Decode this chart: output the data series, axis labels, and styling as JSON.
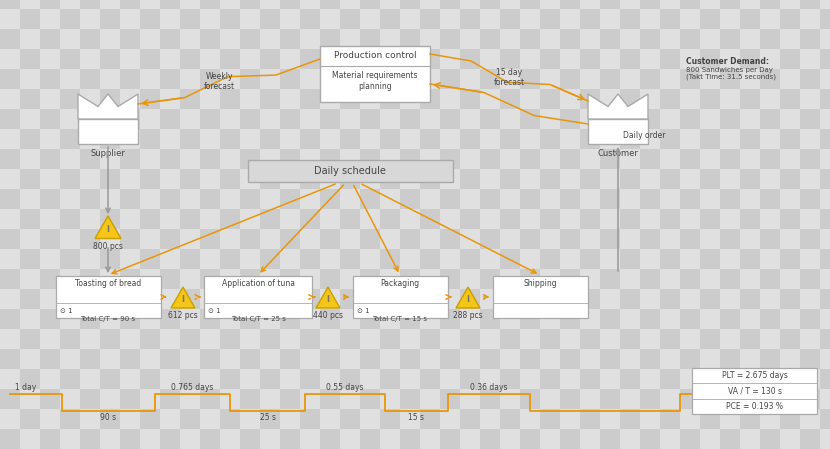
{
  "bg_checker_color1": "#cccccc",
  "bg_checker_color2": "#e0e0e0",
  "orange": "#e8960a",
  "gray_box": "#aaaaaa",
  "tri_fill": "#f5c518",
  "tri_stroke": "#c8a000",
  "text_color": "#444444",
  "title_top": "Production control",
  "title_bot": "Material requirements\nplanning",
  "supplier_label": "Supplier",
  "customer_label": "Customer",
  "customer_demand_bold": "Customer Demand:",
  "customer_demand_rest": "800 Sandwiches per Day\n(Takt Time: 31.5 seconds)",
  "daily_schedule": "Daily schedule",
  "processes": [
    "Toasting of bread",
    "Application of tuna",
    "Packaging",
    "Shipping"
  ],
  "process_ct": [
    "Total C/T = 90 s",
    "Total C/T = 25 s",
    "Total C/T = 15 s",
    ""
  ],
  "process_op": [
    "⊙ 1",
    "⊙ 1",
    "⊙ 1",
    ""
  ],
  "inventory_labels": [
    "800 pcs",
    "612 pcs",
    "440 pcs",
    "288 pcs"
  ],
  "timeline_days": [
    "1 day",
    "0.765 days",
    "0.55 days",
    "0.36 days"
  ],
  "timeline_secs": [
    "90 s",
    "25 s",
    "15 s"
  ],
  "plt_text": "PLT = 2.675 days",
  "va_text": "VA / T = 130 s",
  "pce_text": "PCE = 0.193 %",
  "weekly_forecast": "Weekly\nforecast",
  "day15_forecast": "15 day\nforecast",
  "daily_order": "Daily order",
  "checker_size": 20
}
